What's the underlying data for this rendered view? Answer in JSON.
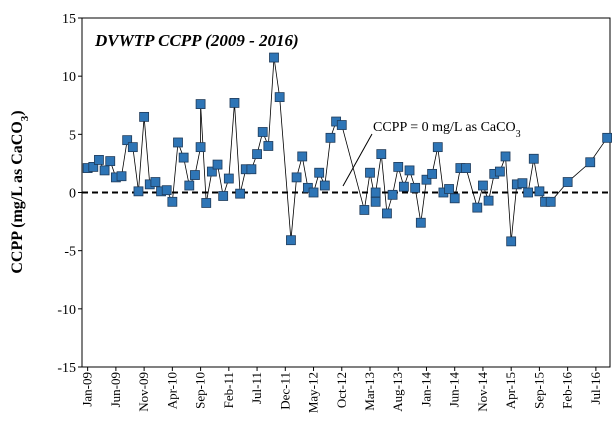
{
  "chart_data": {
    "type": "line",
    "title": "DVWTP CCPP (2009 - 2016)",
    "y_label": {
      "text": "CCPP (mg/L as CaCO",
      "subscript": "3",
      "suffix": ")"
    },
    "annotation": {
      "text": "CCPP = 0 mg/L as CaCO",
      "subscript": "3"
    },
    "reference_line": 0,
    "x": [
      "Jan-09",
      "Feb-09",
      "Mar-09",
      "Apr-09",
      "May-09",
      "Jun-09",
      "Jul-09",
      "Aug-09",
      "Sep-09",
      "Oct-09",
      "Nov-09",
      "Dec-09",
      "Jan-10",
      "Feb-10",
      "Mar-10",
      "Apr-10",
      "May-10",
      "Jun-10",
      "Jul-10",
      "Aug-10",
      "Sep-10",
      "Sep-10",
      "Oct-10",
      "Nov-10",
      "Dec-10",
      "Jan-11",
      "Feb-11",
      "Mar-11",
      "Apr-11",
      "May-11",
      "Jun-11",
      "Jul-11",
      "Aug-11",
      "Sep-11",
      "Oct-11",
      "Nov-11",
      "Jan-12",
      "Feb-12",
      "Mar-12",
      "Apr-12",
      "May-12",
      "Jun-12",
      "Jul-12",
      "Aug-12",
      "Sep-12",
      "Oct-12",
      "Feb-13",
      "Mar-13",
      "Apr-13",
      "Apr-13",
      "May-13",
      "Jun-13",
      "Jul-13",
      "Aug-13",
      "Sep-13",
      "Oct-13",
      "Nov-13",
      "Dec-13",
      "Jan-14",
      "Feb-14",
      "Mar-14",
      "Apr-14",
      "May-14",
      "Jun-14",
      "Jul-14",
      "Aug-14",
      "Oct-14",
      "Nov-14",
      "Dec-14",
      "Jan-15",
      "Feb-15",
      "Mar-15",
      "Apr-15",
      "May-15",
      "Jun-15",
      "Jul-15",
      "Aug-15",
      "Sep-15",
      "Oct-15",
      "Nov-15",
      "Feb-16",
      "Jun-16",
      "Sep-16"
    ],
    "series": [
      {
        "name": "CCPP",
        "color": "#2e75b6",
        "values": [
          2.1,
          2.2,
          2.8,
          1.9,
          2.7,
          1.3,
          1.4,
          4.5,
          3.9,
          0.1,
          6.5,
          0.7,
          0.9,
          0.1,
          0.2,
          -0.8,
          4.3,
          3.0,
          0.6,
          1.5,
          3.9,
          7.6,
          -0.9,
          1.8,
          2.4,
          -0.3,
          1.2,
          7.7,
          -0.1,
          2.0,
          2.0,
          3.3,
          5.2,
          4.0,
          11.6,
          8.2,
          -4.1,
          1.3,
          3.1,
          0.4,
          0.0,
          1.7,
          0.6,
          4.7,
          6.1,
          5.8,
          -1.5,
          1.7,
          -0.8,
          0.0,
          3.3,
          -1.8,
          -0.2,
          2.2,
          0.5,
          1.9,
          0.4,
          -2.6,
          1.1,
          1.6,
          3.9,
          0.0,
          0.3,
          -0.5,
          2.1,
          2.1,
          -1.3,
          0.6,
          -0.7,
          1.6,
          1.8,
          3.1,
          -4.2,
          0.7,
          0.8,
          0.0,
          2.9,
          0.1,
          -0.8,
          -0.8,
          0.9,
          2.6,
          4.7
        ]
      }
    ],
    "xticks": [
      "Jan-09",
      "Jun-09",
      "Nov-09",
      "Apr-10",
      "Sep-10",
      "Feb-11",
      "Jul-11",
      "Dec-11",
      "May-12",
      "Oct-12",
      "Mar-13",
      "Aug-13",
      "Jan-14",
      "Jun-14",
      "Nov-14",
      "Apr-15",
      "Sep-15",
      "Feb-16",
      "Jul-16"
    ],
    "ylim": [
      -15,
      15
    ],
    "yticks": [
      -15,
      -10,
      -5,
      0,
      5,
      10,
      15
    ]
  }
}
